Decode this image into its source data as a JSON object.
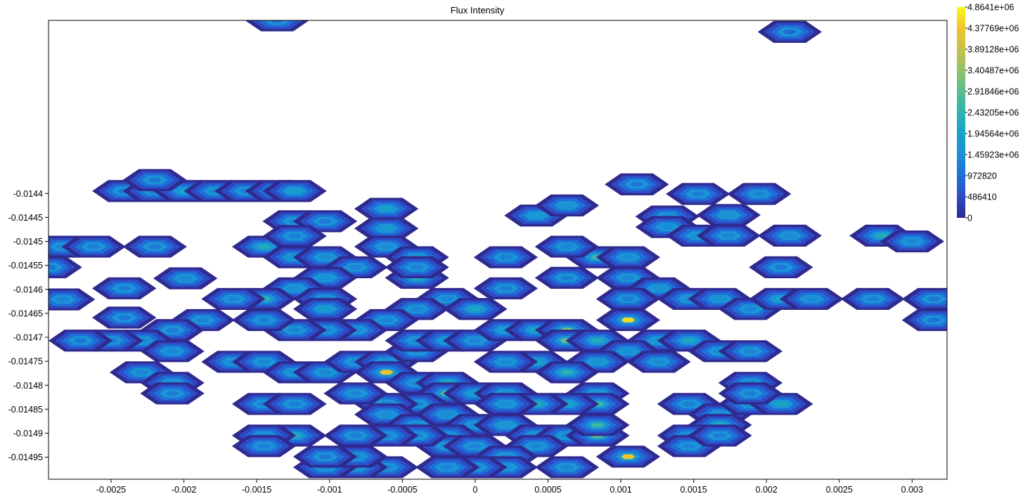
{
  "chart_data": {
    "type": "heatmap",
    "title": "Flux Intensity",
    "xlabel": "",
    "ylabel": "",
    "xlim": [
      -0.00293,
      0.00324
    ],
    "ylim": [
      -0.014996,
      -0.014039
    ],
    "x_ticks": [
      "-0.0025",
      "-0.002",
      "-0.0015",
      "-0.001",
      "-0.0005",
      "0",
      "0.0005",
      "0.001",
      "0.0015",
      "0.002",
      "0.0025",
      "0.003"
    ],
    "y_ticks": [
      "-0.0144",
      "-0.01445",
      "-0.0145",
      "-0.01455",
      "-0.0146",
      "-0.01465",
      "-0.0147",
      "-0.01475",
      "-0.0148",
      "-0.01485",
      "-0.0149",
      "-0.01495"
    ],
    "colorbar": {
      "labels": [
        "4.8641e+06",
        "4.37769e+06",
        "3.89128e+06",
        "3.40487e+06",
        "2.91846e+06",
        "2.43205e+06",
        "1.94564e+06",
        "1.45923e+06",
        "972820",
        "486410",
        "0"
      ],
      "min": 0,
      "max": 4864100,
      "colors": [
        "#2f2a8f",
        "#2e4bc4",
        "#1f6fd8",
        "#1b8fd6",
        "#15a3c9",
        "#2db3b0",
        "#5bbc90",
        "#94c168",
        "#c7c246",
        "#f2c42c",
        "#f9f91a"
      ]
    },
    "grid": {
      "x0": -0.00293,
      "dx": 0.00021,
      "y0": -0.014996,
      "dy": 2.18e-05,
      "n_cols": 30,
      "n_rows": 45
    },
    "cells": [
      {
        "x": -0.00241,
        "y": -0.014395,
        "v": 1100000
      },
      {
        "x": -0.0022,
        "y": -0.014395,
        "v": 1200000
      },
      {
        "x": -0.00199,
        "y": -0.014395,
        "v": 2000000
      },
      {
        "x": -0.00178,
        "y": -0.014395,
        "v": 1300000
      },
      {
        "x": -0.00157,
        "y": -0.014395,
        "v": 1200000
      },
      {
        "x": -0.00136,
        "y": -0.014395,
        "v": 1500000
      },
      {
        "x": -0.00124,
        "y": -0.014395,
        "v": 1800000
      },
      {
        "x": -0.0022,
        "y": -0.014372,
        "v": 1100000
      },
      {
        "x": -0.00136,
        "y": -0.014039,
        "v": 900000
      },
      {
        "x": -0.00124,
        "y": -0.014458,
        "v": 1300000
      },
      {
        "x": -0.00103,
        "y": -0.014458,
        "v": 1100000
      },
      {
        "x": -0.00061,
        "y": -0.014432,
        "v": 1900000
      },
      {
        "x": -0.00061,
        "y": -0.014473,
        "v": 1700000
      },
      {
        "x": 0.00042,
        "y": -0.014446,
        "v": 1700000
      },
      {
        "x": 0.00063,
        "y": -0.014425,
        "v": 1500000
      },
      {
        "x": 0.00111,
        "y": -0.014381,
        "v": 1100000
      },
      {
        "x": 0.00153,
        "y": -0.014401,
        "v": 1200000
      },
      {
        "x": 0.00195,
        "y": -0.014401,
        "v": 1300000
      },
      {
        "x": 0.00174,
        "y": -0.014445,
        "v": 1500000
      },
      {
        "x": 0.00132,
        "y": -0.014448,
        "v": 1300000
      },
      {
        "x": 0.00132,
        "y": -0.01447,
        "v": 1400000
      },
      {
        "x": 0.00153,
        "y": -0.014488,
        "v": 1500000
      },
      {
        "x": 0.00174,
        "y": -0.014488,
        "v": 1300000
      },
      {
        "x": 0.00216,
        "y": -0.014488,
        "v": 1400000
      },
      {
        "x": 0.00279,
        "y": -0.014488,
        "v": 2200000
      },
      {
        "x": 0.003,
        "y": -0.0145,
        "v": 1300000
      },
      {
        "x": 0.00216,
        "y": -0.014063,
        "v": 900000
      },
      {
        "x": -0.00283,
        "y": -0.014511,
        "v": 1300000
      },
      {
        "x": -0.00262,
        "y": -0.014511,
        "v": 1200000
      },
      {
        "x": -0.0022,
        "y": -0.014511,
        "v": 1100000
      },
      {
        "x": -0.00292,
        "y": -0.014554,
        "v": 1100000
      },
      {
        "x": -0.00283,
        "y": -0.014621,
        "v": 1300000
      },
      {
        "x": -0.00241,
        "y": -0.014598,
        "v": 1200000
      },
      {
        "x": -0.00199,
        "y": -0.014577,
        "v": 1300000
      },
      {
        "x": -0.00241,
        "y": -0.014659,
        "v": 1100000
      },
      {
        "x": -0.00145,
        "y": -0.014511,
        "v": 2200000
      },
      {
        "x": -0.00124,
        "y": -0.014489,
        "v": 1200000
      },
      {
        "x": -0.00124,
        "y": -0.014533,
        "v": 1500000
      },
      {
        "x": -0.00103,
        "y": -0.014533,
        "v": 1400000
      },
      {
        "x": -0.00082,
        "y": -0.014554,
        "v": 1300000
      },
      {
        "x": -0.00103,
        "y": -0.014576,
        "v": 1500000
      },
      {
        "x": -0.00124,
        "y": -0.014598,
        "v": 1400000
      },
      {
        "x": -0.00145,
        "y": -0.01462,
        "v": 2400000
      },
      {
        "x": -0.00166,
        "y": -0.01462,
        "v": 1300000
      },
      {
        "x": -0.00103,
        "y": -0.01462,
        "v": 1300000
      },
      {
        "x": -0.00103,
        "y": -0.014641,
        "v": 1800000
      },
      {
        "x": -0.00061,
        "y": -0.014511,
        "v": 1400000
      },
      {
        "x": -0.0004,
        "y": -0.014533,
        "v": 1400000
      },
      {
        "x": -0.0004,
        "y": -0.014576,
        "v": 2200000
      },
      {
        "x": -0.0004,
        "y": -0.014554,
        "v": 1200000
      },
      {
        "x": 0.00021,
        "y": -0.014533,
        "v": 1200000
      },
      {
        "x": 0.00084,
        "y": -0.014533,
        "v": 2600000
      },
      {
        "x": 0.00063,
        "y": -0.014511,
        "v": 1300000
      },
      {
        "x": 0.00105,
        "y": -0.014533,
        "v": 1400000
      },
      {
        "x": 0.00105,
        "y": -0.014576,
        "v": 1300000
      },
      {
        "x": 0.00063,
        "y": -0.014576,
        "v": 1200000
      },
      {
        "x": 0.00021,
        "y": -0.014598,
        "v": 1200000
      },
      {
        "x": 0.00126,
        "y": -0.014598,
        "v": 1500000
      },
      {
        "x": 0.00105,
        "y": -0.01462,
        "v": 1200000
      },
      {
        "x": 0.00147,
        "y": -0.01462,
        "v": 1400000
      },
      {
        "x": 0.00168,
        "y": -0.01462,
        "v": 1500000
      },
      {
        "x": 0.00189,
        "y": -0.014641,
        "v": 1300000
      },
      {
        "x": 0.0021,
        "y": -0.01462,
        "v": 2000000
      },
      {
        "x": 0.00231,
        "y": -0.01462,
        "v": 1400000
      },
      {
        "x": 0.00273,
        "y": -0.01462,
        "v": 1200000
      },
      {
        "x": 0.00315,
        "y": -0.01462,
        "v": 1100000
      },
      {
        "x": 0.00315,
        "y": -0.014664,
        "v": 1000000
      },
      {
        "x": 0.0021,
        "y": -0.014554,
        "v": 1100000
      },
      {
        "x": -0.00019,
        "y": -0.01462,
        "v": 1300000
      },
      {
        "x": 0.0,
        "y": -0.014641,
        "v": 2000000
      },
      {
        "x": -0.0004,
        "y": -0.014641,
        "v": 1300000
      },
      {
        "x": -0.00061,
        "y": -0.014664,
        "v": 1300000
      },
      {
        "x": -0.00082,
        "y": -0.014685,
        "v": 1400000
      },
      {
        "x": -0.00103,
        "y": -0.014685,
        "v": 1300000
      },
      {
        "x": -0.00124,
        "y": -0.014685,
        "v": 1300000
      },
      {
        "x": -0.00145,
        "y": -0.014664,
        "v": 1200000
      },
      {
        "x": -0.00187,
        "y": -0.014664,
        "v": 1300000
      },
      {
        "x": -0.00208,
        "y": -0.014685,
        "v": 1200000
      },
      {
        "x": -0.00229,
        "y": -0.014707,
        "v": 1300000
      },
      {
        "x": -0.0025,
        "y": -0.014707,
        "v": 1200000
      },
      {
        "x": -0.00271,
        "y": -0.014707,
        "v": 1100000
      },
      {
        "x": -0.00208,
        "y": -0.014729,
        "v": 1300000
      },
      {
        "x": -0.00166,
        "y": -0.014751,
        "v": 1400000
      },
      {
        "x": -0.00145,
        "y": -0.014751,
        "v": 1300000
      },
      {
        "x": -0.00124,
        "y": -0.014773,
        "v": 1400000
      },
      {
        "x": -0.00103,
        "y": -0.014773,
        "v": 1300000
      },
      {
        "x": -0.00229,
        "y": -0.014773,
        "v": 1300000
      },
      {
        "x": -0.00208,
        "y": -0.014795,
        "v": 1400000
      },
      {
        "x": -0.00208,
        "y": -0.014817,
        "v": 1200000
      },
      {
        "x": -0.00145,
        "y": -0.014839,
        "v": 1300000
      },
      {
        "x": -0.00124,
        "y": -0.014839,
        "v": 1200000
      },
      {
        "x": -0.00082,
        "y": -0.014751,
        "v": 1300000
      },
      {
        "x": -0.00061,
        "y": -0.014751,
        "v": 1300000
      },
      {
        "x": -0.0004,
        "y": -0.014729,
        "v": 1400000
      },
      {
        "x": -0.0004,
        "y": -0.014707,
        "v": 1300000
      },
      {
        "x": -0.00019,
        "y": -0.014707,
        "v": 1400000
      },
      {
        "x": 0.0,
        "y": -0.014707,
        "v": 1300000
      },
      {
        "x": 0.00021,
        "y": -0.014685,
        "v": 1800000
      },
      {
        "x": 0.00042,
        "y": -0.014685,
        "v": 2000000
      },
      {
        "x": 0.00063,
        "y": -0.014685,
        "v": 3200000
      },
      {
        "x": 0.00063,
        "y": -0.014707,
        "v": 3000000
      },
      {
        "x": 0.00084,
        "y": -0.014707,
        "v": 2200000
      },
      {
        "x": 0.00105,
        "y": -0.014664,
        "v": 4600000
      },
      {
        "x": 0.00126,
        "y": -0.014707,
        "v": 1600000
      },
      {
        "x": 0.00147,
        "y": -0.014707,
        "v": 2100000
      },
      {
        "x": 0.00168,
        "y": -0.014729,
        "v": 1400000
      },
      {
        "x": 0.00189,
        "y": -0.014729,
        "v": 1300000
      },
      {
        "x": 0.00189,
        "y": -0.014795,
        "v": 1300000
      },
      {
        "x": 0.00105,
        "y": -0.014729,
        "v": 1500000
      },
      {
        "x": 0.00084,
        "y": -0.014751,
        "v": 1600000
      },
      {
        "x": 0.00126,
        "y": -0.014751,
        "v": 1400000
      },
      {
        "x": 0.00042,
        "y": -0.014751,
        "v": 1900000
      },
      {
        "x": 0.00021,
        "y": -0.014751,
        "v": 1400000
      },
      {
        "x": -0.00061,
        "y": -0.014773,
        "v": 4300000
      },
      {
        "x": -0.0004,
        "y": -0.014795,
        "v": 1400000
      },
      {
        "x": -0.00019,
        "y": -0.014795,
        "v": 2200000
      },
      {
        "x": -0.00019,
        "y": -0.014817,
        "v": 3000000
      },
      {
        "x": 0.0,
        "y": -0.014817,
        "v": 1800000
      },
      {
        "x": 0.00021,
        "y": -0.014817,
        "v": 1500000
      },
      {
        "x": 0.00063,
        "y": -0.014773,
        "v": 2400000
      },
      {
        "x": 0.00084,
        "y": -0.014817,
        "v": 1700000
      },
      {
        "x": 0.00084,
        "y": -0.014839,
        "v": 2600000
      },
      {
        "x": 0.00063,
        "y": -0.014839,
        "v": 2000000
      },
      {
        "x": 0.00042,
        "y": -0.014839,
        "v": 2200000
      },
      {
        "x": 0.00021,
        "y": -0.014839,
        "v": 1500000
      },
      {
        "x": -0.0004,
        "y": -0.014839,
        "v": 1300000
      },
      {
        "x": -0.00061,
        "y": -0.014839,
        "v": 1300000
      },
      {
        "x": -0.00082,
        "y": -0.014817,
        "v": 1300000
      },
      {
        "x": -0.00061,
        "y": -0.014861,
        "v": 1400000
      },
      {
        "x": -0.0004,
        "y": -0.014883,
        "v": 1300000
      },
      {
        "x": -0.00019,
        "y": -0.014861,
        "v": 1400000
      },
      {
        "x": 0.0,
        "y": -0.014883,
        "v": 1400000
      },
      {
        "x": 0.00021,
        "y": -0.014883,
        "v": 1600000
      },
      {
        "x": 0.00042,
        "y": -0.014905,
        "v": 1400000
      },
      {
        "x": 0.00063,
        "y": -0.014905,
        "v": 1300000
      },
      {
        "x": 0.00084,
        "y": -0.014905,
        "v": 3000000
      },
      {
        "x": 0.00084,
        "y": -0.014883,
        "v": 2600000
      },
      {
        "x": 0.00042,
        "y": -0.014927,
        "v": 1300000
      },
      {
        "x": 0.00105,
        "y": -0.014949,
        "v": 4400000
      },
      {
        "x": 0.00063,
        "y": -0.014971,
        "v": 1300000
      },
      {
        "x": -0.00019,
        "y": -0.014905,
        "v": 1300000
      },
      {
        "x": -0.00019,
        "y": -0.014927,
        "v": 1300000
      },
      {
        "x": 0.0,
        "y": -0.014927,
        "v": 1300000
      },
      {
        "x": 0.00021,
        "y": -0.014949,
        "v": 1300000
      },
      {
        "x": 0.00021,
        "y": -0.014971,
        "v": 1500000
      },
      {
        "x": 0.0,
        "y": -0.014971,
        "v": 1300000
      },
      {
        "x": -0.00019,
        "y": -0.014971,
        "v": 1300000
      },
      {
        "x": -0.0004,
        "y": -0.014905,
        "v": 1300000
      },
      {
        "x": -0.00061,
        "y": -0.014905,
        "v": 1300000
      },
      {
        "x": -0.00082,
        "y": -0.014905,
        "v": 1200000
      },
      {
        "x": -0.00061,
        "y": -0.014971,
        "v": 1300000
      },
      {
        "x": -0.00082,
        "y": -0.014971,
        "v": 1600000
      },
      {
        "x": -0.00103,
        "y": -0.014971,
        "v": 1300000
      },
      {
        "x": -0.00082,
        "y": -0.014949,
        "v": 1300000
      },
      {
        "x": -0.00103,
        "y": -0.014949,
        "v": 1100000
      },
      {
        "x": -0.00124,
        "y": -0.014905,
        "v": 2200000
      },
      {
        "x": -0.00145,
        "y": -0.014905,
        "v": 1300000
      },
      {
        "x": -0.00145,
        "y": -0.014927,
        "v": 1200000
      },
      {
        "x": 0.00147,
        "y": -0.014839,
        "v": 1200000
      },
      {
        "x": 0.00168,
        "y": -0.014861,
        "v": 1300000
      },
      {
        "x": 0.00168,
        "y": -0.014883,
        "v": 2200000
      },
      {
        "x": 0.00147,
        "y": -0.014905,
        "v": 1300000
      },
      {
        "x": 0.00147,
        "y": -0.014927,
        "v": 1300000
      },
      {
        "x": 0.00189,
        "y": -0.014839,
        "v": 1400000
      },
      {
        "x": 0.0021,
        "y": -0.014839,
        "v": 2000000
      },
      {
        "x": 0.00189,
        "y": -0.014817,
        "v": 1200000
      },
      {
        "x": 0.00168,
        "y": -0.014905,
        "v": 1200000
      }
    ]
  }
}
